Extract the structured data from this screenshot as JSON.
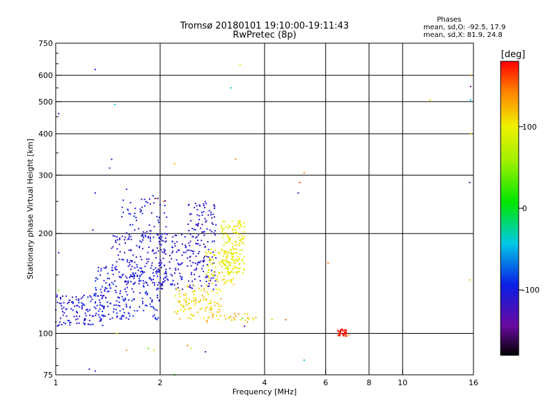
{
  "chart_data": {
    "type": "scatter",
    "title": "Tromsø 20180101 19:10:00-19:11:43",
    "subtitle": "RwPretec (8p)",
    "xlabel": "Frequency [MHz]",
    "ylabel": "Stationary phase Virtual Height [km]",
    "x_scale": "log",
    "y_scale": "log",
    "xlim": [
      1,
      16
    ],
    "ylim": [
      75,
      750
    ],
    "x_ticks": [
      1,
      2,
      4,
      6,
      8,
      10,
      16
    ],
    "y_ticks": [
      75,
      100,
      200,
      300,
      400,
      500,
      600,
      750
    ],
    "x_gridlines": [
      2,
      4,
      6,
      8,
      10
    ],
    "y_gridlines": [
      100,
      200,
      300,
      400,
      500,
      600
    ],
    "grid": true,
    "stats": {
      "heading": "Phases",
      "line1": "mean, sd,O: -92.5, 17.9",
      "line2": "mean, sd,X:  81.9, 24.8"
    },
    "colorbar": {
      "label": "[deg]",
      "range": [
        -180,
        180
      ],
      "ticks": [
        -100,
        0,
        100
      ]
    },
    "clusters": [
      {
        "x_range": [
          1.0,
          1.4
        ],
        "y_range": [
          105,
          132
        ],
        "phase": -110,
        "count": 130
      },
      {
        "x_range": [
          1.3,
          2.0
        ],
        "y_range": [
          110,
          160
        ],
        "phase": -105,
        "count": 200
      },
      {
        "x_range": [
          1.45,
          2.1
        ],
        "y_range": [
          140,
          200
        ],
        "phase": -115,
        "count": 150
      },
      {
        "x_range": [
          1.55,
          2.1
        ],
        "y_range": [
          190,
          260
        ],
        "phase": -110,
        "count": 60
      },
      {
        "x_range": [
          2.0,
          2.9
        ],
        "y_range": [
          135,
          200
        ],
        "phase": -115,
        "count": 180
      },
      {
        "x_range": [
          2.4,
          2.9
        ],
        "y_range": [
          200,
          250
        ],
        "phase": -115,
        "count": 60
      },
      {
        "x_range": [
          2.2,
          3.0
        ],
        "y_range": [
          110,
          140
        ],
        "phase": 110,
        "count": 110
      },
      {
        "x_range": [
          2.7,
          3.3
        ],
        "y_range": [
          140,
          180
        ],
        "phase": 100,
        "count": 90
      },
      {
        "x_range": [
          3.0,
          3.5
        ],
        "y_range": [
          150,
          220
        ],
        "phase": 95,
        "count": 140
      },
      {
        "x_range": [
          2.7,
          3.8
        ],
        "y_range": [
          108,
          115
        ],
        "phase": 120,
        "count": 30
      },
      {
        "x_range": [
          6.5,
          6.9
        ],
        "y_range": [
          98,
          103
        ],
        "phase": 175,
        "count": 40
      }
    ],
    "points": [
      {
        "x": 1.3,
        "y": 625,
        "phase": -110
      },
      {
        "x": 1.48,
        "y": 490,
        "phase": -50
      },
      {
        "x": 1.02,
        "y": 460,
        "phase": -120
      },
      {
        "x": 1.45,
        "y": 335,
        "phase": -110
      },
      {
        "x": 1.43,
        "y": 315,
        "phase": -130
      },
      {
        "x": 1.3,
        "y": 265,
        "phase": -115
      },
      {
        "x": 1.6,
        "y": 272,
        "phase": -115
      },
      {
        "x": 1.28,
        "y": 205,
        "phase": -110
      },
      {
        "x": 2.2,
        "y": 325,
        "phase": 120
      },
      {
        "x": 3.2,
        "y": 550,
        "phase": -40
      },
      {
        "x": 3.4,
        "y": 645,
        "phase": 100
      },
      {
        "x": 3.3,
        "y": 335,
        "phase": 140
      },
      {
        "x": 5.05,
        "y": 285,
        "phase": 160
      },
      {
        "x": 5.0,
        "y": 265,
        "phase": -120
      },
      {
        "x": 5.2,
        "y": 305,
        "phase": 140
      },
      {
        "x": 6.1,
        "y": 163,
        "phase": 150
      },
      {
        "x": 12.0,
        "y": 505,
        "phase": 110
      },
      {
        "x": 15.7,
        "y": 600,
        "phase": 140
      },
      {
        "x": 15.7,
        "y": 555,
        "phase": -150
      },
      {
        "x": 15.7,
        "y": 505,
        "phase": -40
      },
      {
        "x": 15.6,
        "y": 285,
        "phase": -125
      },
      {
        "x": 15.6,
        "y": 145,
        "phase": 120
      },
      {
        "x": 15.7,
        "y": 400,
        "phase": 110
      },
      {
        "x": 5.2,
        "y": 83,
        "phase": -50
      },
      {
        "x": 2.4,
        "y": 92,
        "phase": 140
      },
      {
        "x": 2.45,
        "y": 90,
        "phase": 100
      },
      {
        "x": 2.7,
        "y": 88,
        "phase": -110
      },
      {
        "x": 1.25,
        "y": 78,
        "phase": -110
      },
      {
        "x": 1.3,
        "y": 77,
        "phase": -110
      },
      {
        "x": 2.2,
        "y": 75,
        "phase": 0
      },
      {
        "x": 1.85,
        "y": 90,
        "phase": 40
      },
      {
        "x": 1.92,
        "y": 89,
        "phase": 80
      },
      {
        "x": 1.6,
        "y": 89,
        "phase": 140
      },
      {
        "x": 1.5,
        "y": 100,
        "phase": 100
      },
      {
        "x": 4.2,
        "y": 110,
        "phase": 120
      },
      {
        "x": 4.6,
        "y": 110,
        "phase": 150
      },
      {
        "x": 3.5,
        "y": 105,
        "phase": -130
      },
      {
        "x": 3.45,
        "y": 111,
        "phase": 30
      },
      {
        "x": 1.02,
        "y": 175,
        "phase": -120
      },
      {
        "x": 1.02,
        "y": 135,
        "phase": 40
      },
      {
        "x": 7.0,
        "y": 99,
        "phase": 130
      },
      {
        "x": 2.05,
        "y": 250,
        "phase": 150
      },
      {
        "x": 1.95,
        "y": 255,
        "phase": 130
      }
    ]
  }
}
